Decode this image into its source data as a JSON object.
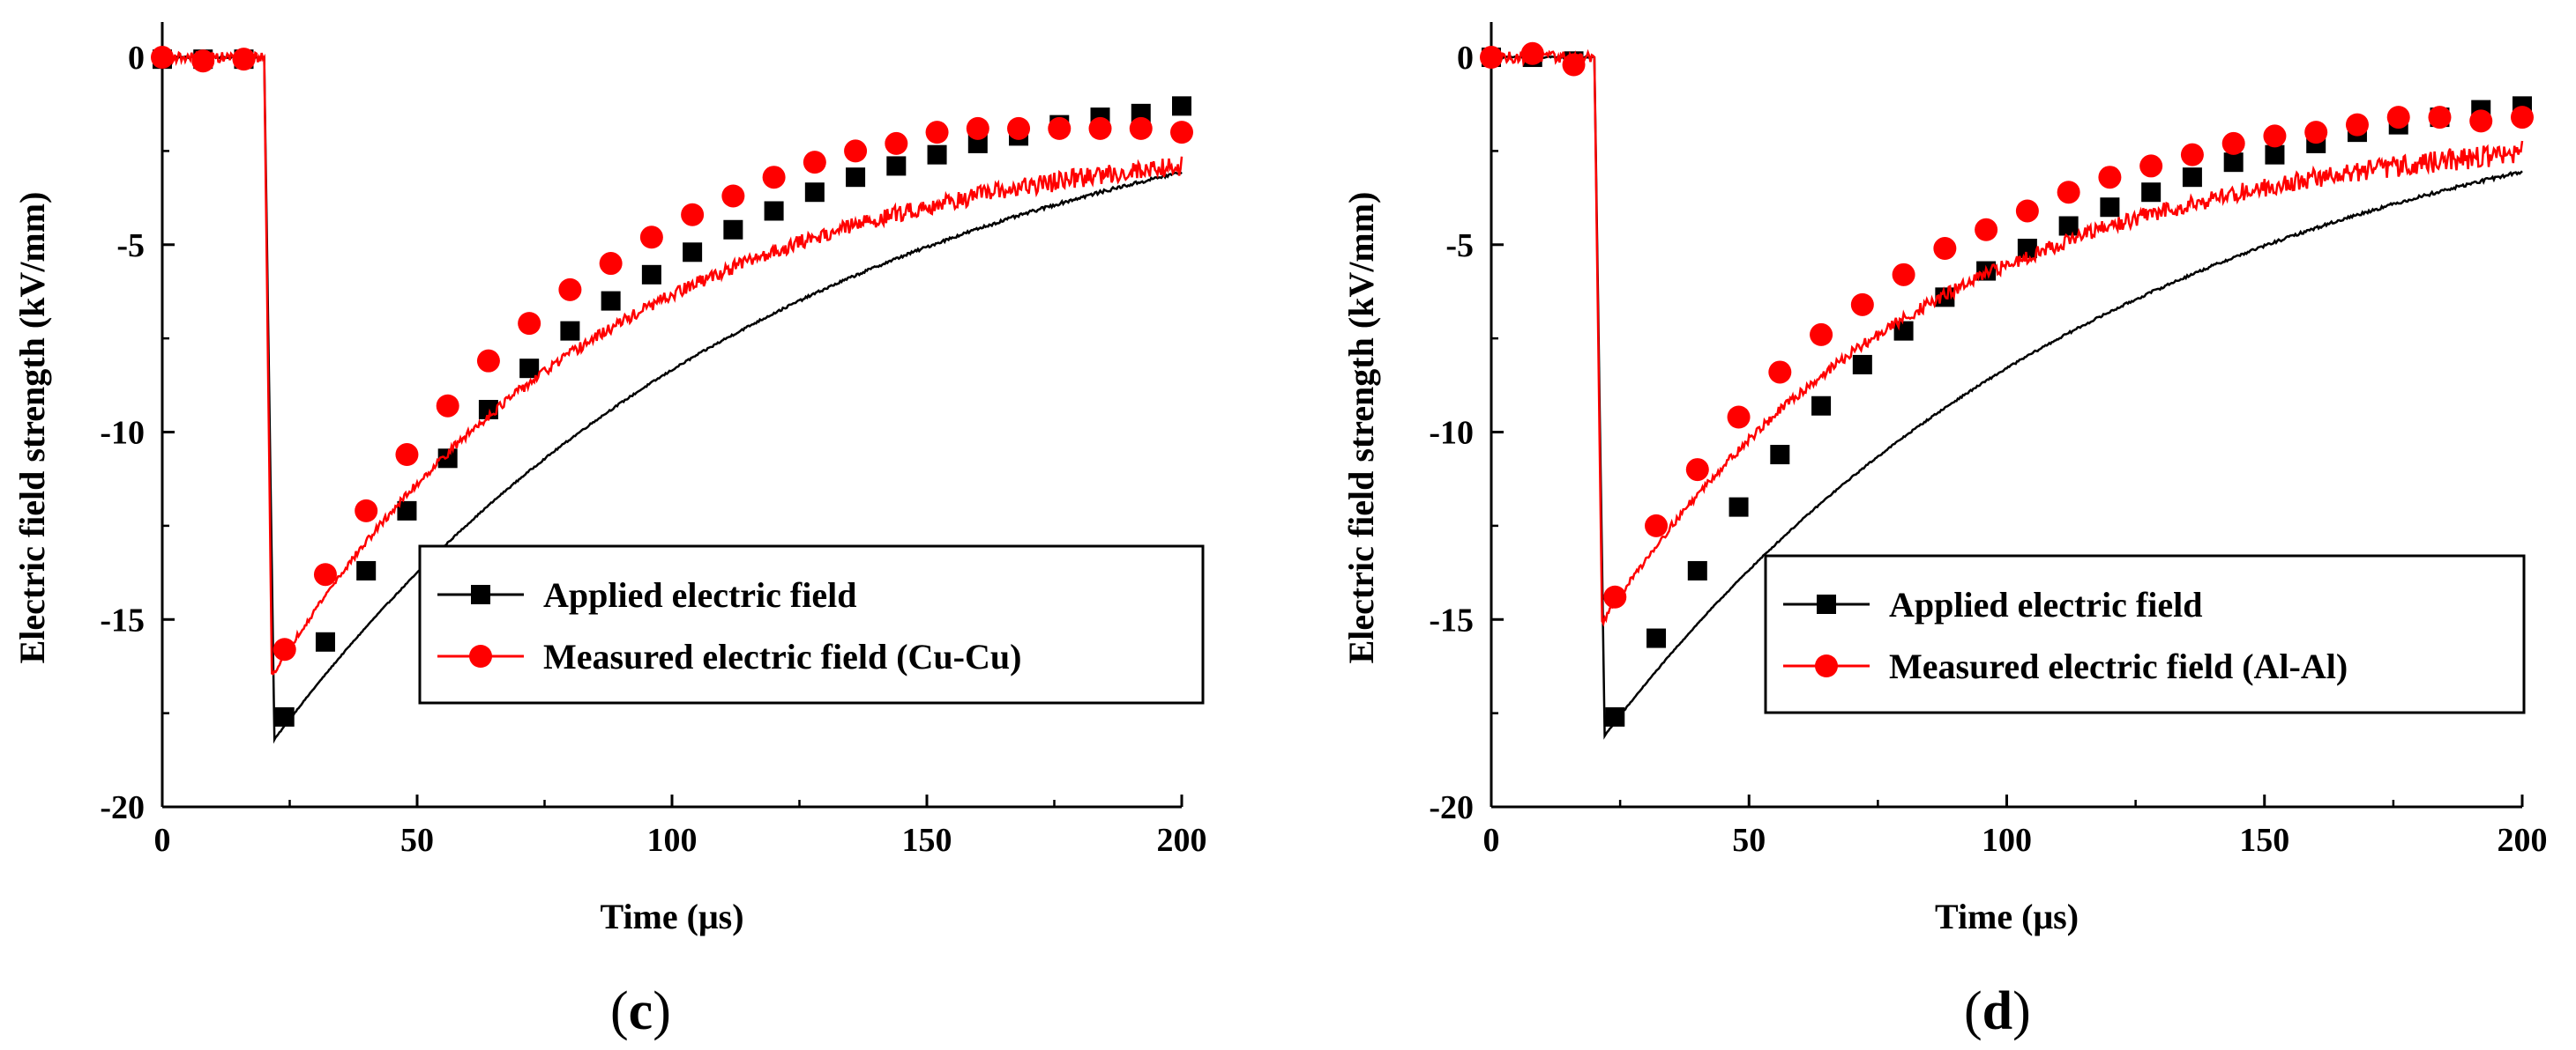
{
  "chart_data": [
    {
      "type": "line",
      "panel": "(c)",
      "panel_open": "(",
      "panel_letter": "c",
      "panel_close": ")",
      "xlabel": "Time (μs)",
      "ylabel": "Electric field strength (kV/mm)",
      "xlim": [
        0,
        200
      ],
      "ylim": [
        -20,
        0.8
      ],
      "xticks": [
        0,
        50,
        100,
        150,
        200
      ],
      "yticks": [
        0,
        -5,
        -10,
        -15,
        -20
      ],
      "legend_position": "center-right",
      "series": [
        {
          "name": "Applied electric field",
          "color": "#000000",
          "marker": "square",
          "curve": {
            "baseline": 0,
            "step_time": 20,
            "peak": -18.2,
            "peak_time": 22,
            "tau": 100,
            "noise": 0.03
          },
          "markers_x": [
            0,
            8,
            16,
            24,
            32,
            40,
            48,
            56,
            64,
            72,
            80,
            88,
            96,
            104,
            112,
            120,
            128,
            136,
            144,
            152,
            160,
            168,
            176,
            184,
            192,
            200
          ],
          "markers_y": [
            -0.05,
            -0.05,
            -0.05,
            -17.6,
            -15.6,
            -13.7,
            -12.1,
            -10.7,
            -9.4,
            -8.3,
            -7.3,
            -6.5,
            -5.8,
            -5.2,
            -4.6,
            -4.1,
            -3.6,
            -3.2,
            -2.9,
            -2.6,
            -2.3,
            -2.1,
            -1.8,
            -1.6,
            -1.5,
            -1.3
          ]
        },
        {
          "name": "Measured electric field (Cu-Cu)",
          "color": "#ff0000",
          "marker": "circle",
          "curve": {
            "baseline": 0,
            "step_time": 20,
            "peak": -16.5,
            "peak_time": 21.5,
            "tau": 66,
            "floor": -1.9,
            "noise": 0.18
          },
          "markers_x": [
            0,
            8,
            16,
            24,
            32,
            40,
            48,
            56,
            64,
            72,
            80,
            88,
            96,
            104,
            112,
            120,
            128,
            136,
            144,
            152,
            160,
            168,
            176,
            184,
            192,
            200
          ],
          "markers_y": [
            0,
            -0.1,
            -0.05,
            -15.8,
            -13.8,
            -12.1,
            -10.6,
            -9.3,
            -8.1,
            -7.1,
            -6.2,
            -5.5,
            -4.8,
            -4.2,
            -3.7,
            -3.2,
            -2.8,
            -2.5,
            -2.3,
            -2.0,
            -1.9,
            -1.9,
            -1.9,
            -1.9,
            -1.9,
            -2.0
          ]
        }
      ]
    },
    {
      "type": "line",
      "panel": "(d)",
      "panel_open": "(",
      "panel_letter": "d",
      "panel_close": ")",
      "xlabel": "Time (μs)",
      "ylabel": "Electric field strength (kV/mm)",
      "xlim": [
        0,
        200
      ],
      "ylim": [
        -20,
        0.8
      ],
      "xticks": [
        0,
        50,
        100,
        150,
        200
      ],
      "yticks": [
        0,
        -5,
        -10,
        -15,
        -20
      ],
      "legend_position": "center-right",
      "series": [
        {
          "name": "Applied electric field",
          "color": "#000000",
          "marker": "square",
          "curve": {
            "baseline": 0,
            "step_time": 20,
            "peak": -18.1,
            "peak_time": 22,
            "tau": 100,
            "noise": 0.03
          },
          "markers_x": [
            0,
            8,
            16,
            24,
            32,
            40,
            48,
            56,
            64,
            72,
            80,
            88,
            96,
            104,
            112,
            120,
            128,
            136,
            144,
            152,
            160,
            168,
            176,
            184,
            192,
            200
          ],
          "markers_y": [
            0,
            0,
            -0.1,
            -17.6,
            -15.5,
            -13.7,
            -12.0,
            -10.6,
            -9.3,
            -8.2,
            -7.3,
            -6.4,
            -5.7,
            -5.1,
            -4.5,
            -4.0,
            -3.6,
            -3.2,
            -2.8,
            -2.6,
            -2.3,
            -2.0,
            -1.8,
            -1.6,
            -1.4,
            -1.3
          ]
        },
        {
          "name": "Measured electric field (Al-Al)",
          "color": "#ff0000",
          "marker": "circle",
          "curve": {
            "baseline": 0,
            "step_time": 20,
            "peak": -15.1,
            "peak_time": 21.5,
            "tau": 62,
            "floor": -1.8,
            "noise": 0.2
          },
          "markers_x": [
            0,
            8,
            16,
            24,
            32,
            40,
            48,
            56,
            64,
            72,
            80,
            88,
            96,
            104,
            112,
            120,
            128,
            136,
            144,
            152,
            160,
            168,
            176,
            184,
            192,
            200
          ],
          "markers_y": [
            0,
            0.1,
            -0.2,
            -14.4,
            -12.5,
            -11.0,
            -9.6,
            -8.4,
            -7.4,
            -6.6,
            -5.8,
            -5.1,
            -4.6,
            -4.1,
            -3.6,
            -3.2,
            -2.9,
            -2.6,
            -2.3,
            -2.1,
            -2.0,
            -1.8,
            -1.6,
            -1.6,
            -1.7,
            -1.6
          ]
        }
      ]
    }
  ]
}
